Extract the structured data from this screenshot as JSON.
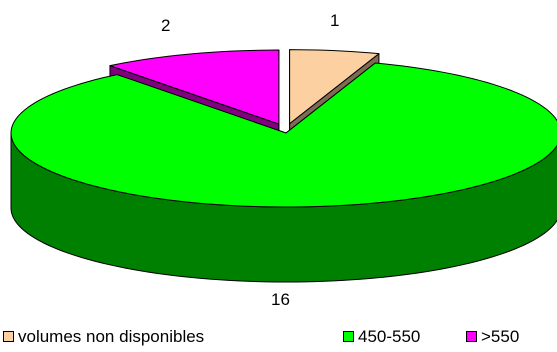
{
  "chart_data": {
    "type": "pie",
    "title": "",
    "slices": [
      {
        "label": "volumes non disponibles",
        "value": 1,
        "color": "#fcd0a0",
        "side_color": "#7f6a56"
      },
      {
        "label": "450-550",
        "value": 16,
        "color": "#00ff00",
        "side_color": "#008000"
      },
      {
        "label": ">550",
        "value": 2,
        "color": "#ff00ff",
        "side_color": "#800080"
      }
    ],
    "data_labels": [
      "1",
      "16",
      "2"
    ],
    "legend_placement": "bottom",
    "style": "3d-exploded"
  },
  "legend": {
    "items": [
      {
        "label": "volumes non disponibles",
        "color": "#fcd0a0"
      },
      {
        "label": "450-550",
        "color": "#00ff00"
      },
      {
        "label": ">550",
        "color": "#ff00ff"
      }
    ]
  }
}
